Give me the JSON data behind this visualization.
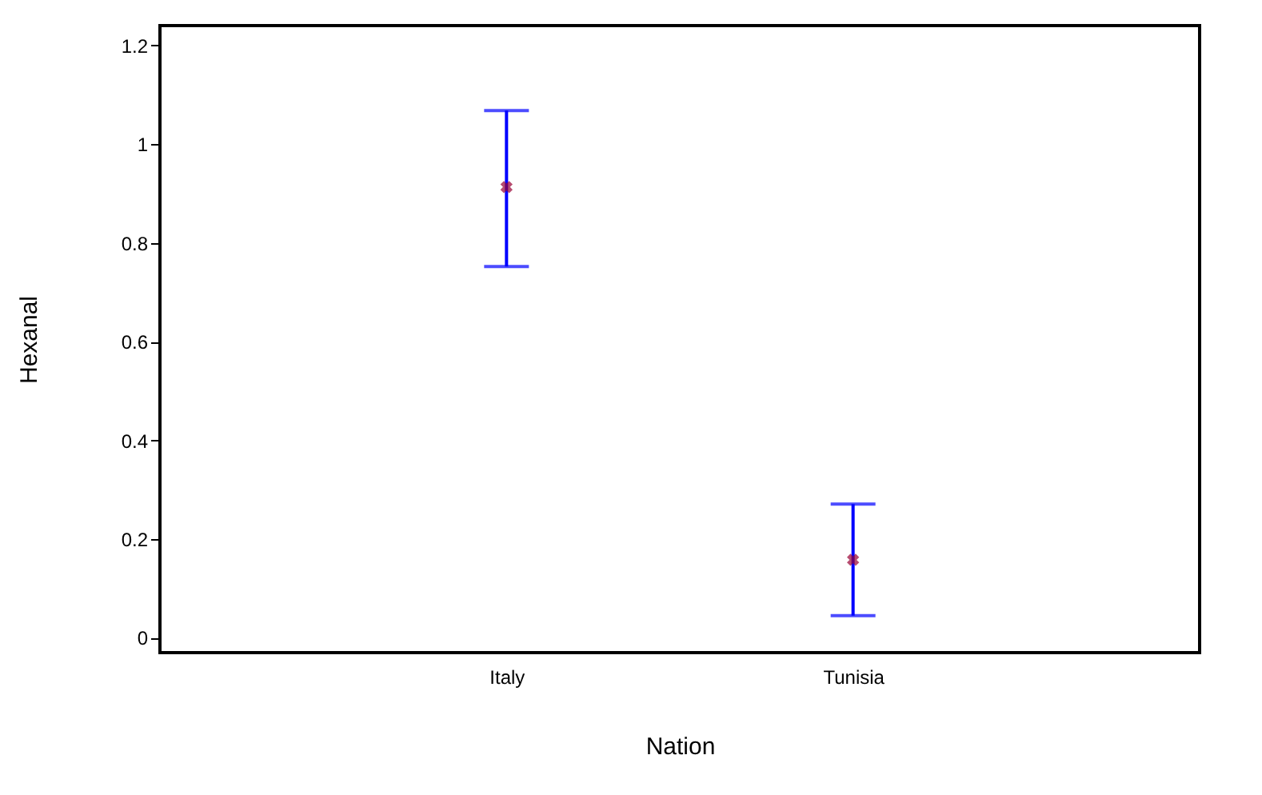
{
  "chart_data": {
    "type": "scatter",
    "xlabel": "Nation",
    "ylabel": "Hexanal",
    "categories": [
      "Italy",
      "Tunisia"
    ],
    "series": [
      {
        "color": "#990033",
        "values": [
          0.913,
          0.158
        ],
        "errors": [
          [
            0.752,
            1.068
          ],
          [
            0.045,
            0.271
          ]
        ]
      }
    ],
    "ylim": [
      -0.03,
      1.24
    ],
    "yticks": [
      0,
      0.2,
      0.4,
      0.6,
      0.8,
      1,
      1.2
    ],
    "marker": "cross",
    "grid": false
  }
}
